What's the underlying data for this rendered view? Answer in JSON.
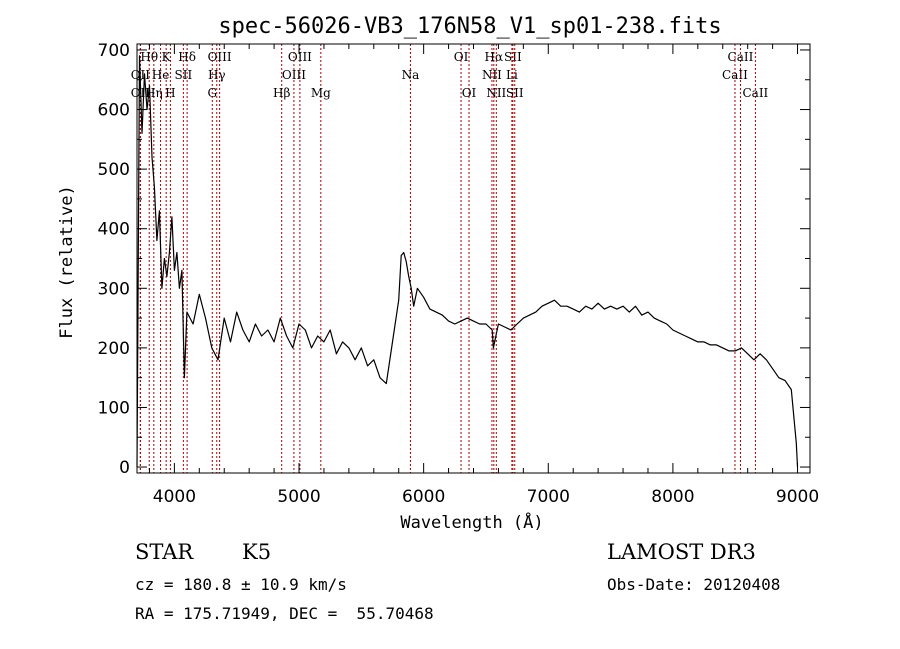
{
  "chart_data": {
    "type": "line",
    "title": "spec-56026-VB3_176N58_V1_sp01-238.fits",
    "xlabel": "Wavelength (Å)",
    "ylabel": "Flux (relative)",
    "xlim": [
      3700,
      9100
    ],
    "ylim": [
      -10,
      710
    ],
    "xticks": [
      4000,
      5000,
      6000,
      7000,
      8000,
      9000
    ],
    "yticks": [
      0,
      100,
      200,
      300,
      400,
      500,
      600,
      700
    ],
    "grid": false,
    "series": [
      {
        "name": "flux",
        "x": [
          3700,
          3720,
          3740,
          3760,
          3780,
          3800,
          3820,
          3840,
          3860,
          3880,
          3900,
          3920,
          3940,
          3960,
          3980,
          4000,
          4020,
          4040,
          4060,
          4080,
          4100,
          4150,
          4200,
          4250,
          4300,
          4350,
          4400,
          4450,
          4500,
          4550,
          4600,
          4650,
          4700,
          4750,
          4800,
          4850,
          4900,
          4950,
          5000,
          5050,
          5100,
          5150,
          5200,
          5250,
          5300,
          5350,
          5400,
          5450,
          5500,
          5550,
          5600,
          5650,
          5700,
          5750,
          5800,
          5820,
          5840,
          5860,
          5880,
          5900,
          5920,
          5950,
          6000,
          6050,
          6100,
          6150,
          6200,
          6250,
          6300,
          6350,
          6400,
          6450,
          6500,
          6550,
          6560,
          6600,
          6650,
          6700,
          6750,
          6800,
          6850,
          6900,
          6950,
          7000,
          7050,
          7100,
          7150,
          7200,
          7250,
          7300,
          7350,
          7400,
          7450,
          7500,
          7550,
          7600,
          7650,
          7700,
          7750,
          7800,
          7850,
          7900,
          7950,
          8000,
          8050,
          8100,
          8150,
          8200,
          8250,
          8300,
          8350,
          8400,
          8450,
          8500,
          8550,
          8600,
          8650,
          8700,
          8750,
          8800,
          8850,
          8900,
          8950,
          8990,
          9000
        ],
        "y": [
          0,
          690,
          560,
          660,
          600,
          640,
          520,
          470,
          380,
          430,
          300,
          350,
          320,
          360,
          420,
          330,
          360,
          300,
          330,
          150,
          260,
          240,
          290,
          250,
          200,
          180,
          250,
          210,
          260,
          230,
          210,
          240,
          220,
          230,
          210,
          250,
          220,
          200,
          240,
          230,
          200,
          220,
          210,
          230,
          190,
          210,
          200,
          180,
          200,
          170,
          180,
          150,
          140,
          210,
          280,
          355,
          360,
          345,
          320,
          300,
          270,
          300,
          285,
          265,
          260,
          255,
          245,
          240,
          245,
          250,
          245,
          240,
          240,
          230,
          200,
          240,
          235,
          230,
          240,
          250,
          255,
          260,
          270,
          275,
          280,
          270,
          270,
          265,
          260,
          270,
          265,
          275,
          265,
          270,
          265,
          270,
          260,
          270,
          255,
          260,
          250,
          245,
          240,
          230,
          225,
          220,
          215,
          210,
          210,
          205,
          205,
          200,
          195,
          195,
          200,
          190,
          180,
          190,
          180,
          165,
          150,
          145,
          130,
          40,
          0
        ]
      }
    ],
    "lines": [
      {
        "label": "OII",
        "wl": 3727,
        "row": 2
      },
      {
        "label": "OII",
        "wl": 3727,
        "row": 3
      },
      {
        "label": "Hθ",
        "wl": 3798,
        "row": 1
      },
      {
        "label": "Hη",
        "wl": 3835,
        "row": 3
      },
      {
        "label": "He",
        "wl": 3889,
        "row": 2
      },
      {
        "label": "K",
        "wl": 3934,
        "row": 1
      },
      {
        "label": "H",
        "wl": 3968,
        "row": 3
      },
      {
        "label": "SII",
        "wl": 4072,
        "row": 2
      },
      {
        "label": "Hδ",
        "wl": 4102,
        "row": 1
      },
      {
        "label": "G",
        "wl": 4304,
        "row": 3
      },
      {
        "label": "Hγ",
        "wl": 4340,
        "row": 2
      },
      {
        "label": "OIII",
        "wl": 4363,
        "row": 1
      },
      {
        "label": "Hβ",
        "wl": 4861,
        "row": 3
      },
      {
        "label": "OIII",
        "wl": 4959,
        "row": 2
      },
      {
        "label": "OIII",
        "wl": 5007,
        "row": 1
      },
      {
        "label": "Mg",
        "wl": 5175,
        "row": 3
      },
      {
        "label": "Na",
        "wl": 5894,
        "row": 2
      },
      {
        "label": "OI",
        "wl": 6300,
        "row": 1
      },
      {
        "label": "OI",
        "wl": 6364,
        "row": 3
      },
      {
        "label": "NII",
        "wl": 6548,
        "row": 2
      },
      {
        "label": "Hα",
        "wl": 6563,
        "row": 1
      },
      {
        "label": "NII",
        "wl": 6583,
        "row": 3
      },
      {
        "label": "SII",
        "wl": 6716,
        "row": 1
      },
      {
        "label": "Li",
        "wl": 6708,
        "row": 2
      },
      {
        "label": "SII",
        "wl": 6731,
        "row": 3
      },
      {
        "label": "CaII",
        "wl": 8498,
        "row": 2
      },
      {
        "label": "CaII",
        "wl": 8542,
        "row": 1
      },
      {
        "label": "CaII",
        "wl": 8662,
        "row": 3
      }
    ]
  },
  "info": {
    "object_class": "STAR",
    "subclass": "K5",
    "survey": "LAMOST DR3",
    "redshift": "cz = 180.8 ± 10.9 km/s",
    "obs_date": "Obs-Date: 20120408",
    "coords": "RA = 175.71949, DEC =  55.70468"
  },
  "colors": {
    "line_markers": "#aa0000",
    "spectrum": "#000000"
  }
}
